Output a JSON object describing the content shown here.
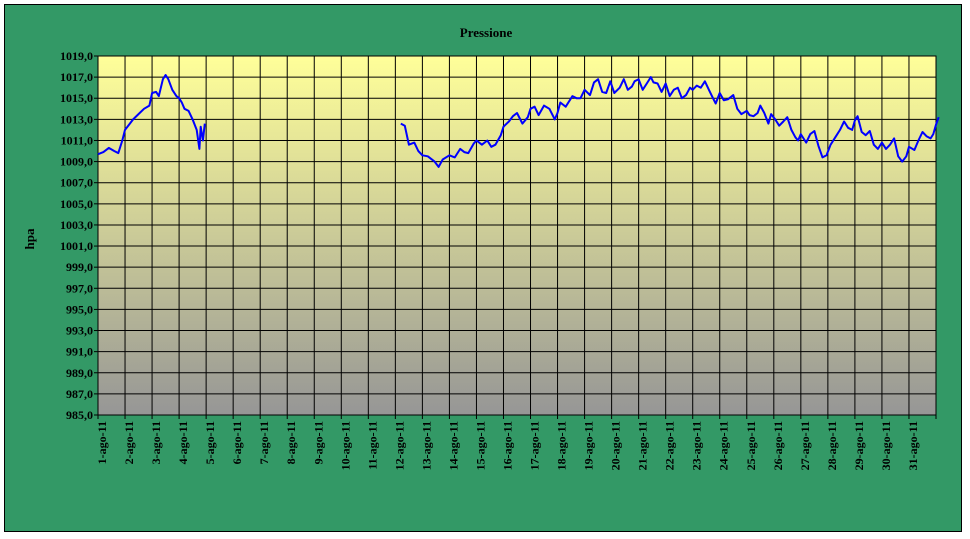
{
  "chart_data": {
    "type": "line",
    "title": "Pressione",
    "xlabel": "",
    "ylabel": "hpa",
    "ylim": [
      985.0,
      1019.0
    ],
    "ytick_step": 2.0,
    "ytick_labels": [
      "1019,0",
      "1017,0",
      "1015,0",
      "1013,0",
      "1011,0",
      "1009,0",
      "1007,0",
      "1005,0",
      "1003,0",
      "1001,0",
      "999,0",
      "997,0",
      "995,0",
      "993,0",
      "991,0",
      "989,0",
      "987,0",
      "985,0"
    ],
    "categories": [
      "1-ago-11",
      "2-ago-11",
      "3-ago-11",
      "4-ago-11",
      "5-ago-11",
      "6-ago-11",
      "7-ago-11",
      "8-ago-11",
      "9-ago-11",
      "10-ago-11",
      "11-ago-11",
      "12-ago-11",
      "13-ago-11",
      "14-ago-11",
      "15-ago-11",
      "16-ago-11",
      "17-ago-11",
      "18-ago-11",
      "19-ago-11",
      "20-ago-11",
      "21-ago-11",
      "22-ago-11",
      "23-ago-11",
      "24-ago-11",
      "25-ago-11",
      "26-ago-11",
      "27-ago-11",
      "28-ago-11",
      "29-ago-11",
      "30-ago-11",
      "31-ago-11"
    ],
    "grid": true,
    "legend": "none",
    "colors": {
      "frame": "#339966",
      "plot_top": "#ffff99",
      "plot_bottom": "#969696",
      "line": "#0000ff",
      "grid": "#000000"
    },
    "series": [
      {
        "segments": [
          [
            [
              1.0,
              1009.7
            ],
            [
              1.2,
              1009.9
            ],
            [
              1.4,
              1010.3
            ],
            [
              1.6,
              1010.0
            ],
            [
              1.75,
              1009.8
            ],
            [
              1.9,
              1011.0
            ],
            [
              2.0,
              1012.0
            ],
            [
              2.15,
              1012.5
            ],
            [
              2.3,
              1013.0
            ],
            [
              2.5,
              1013.5
            ],
            [
              2.7,
              1014.0
            ],
            [
              2.9,
              1014.3
            ],
            [
              3.0,
              1015.5
            ],
            [
              3.15,
              1015.6
            ],
            [
              3.25,
              1015.2
            ],
            [
              3.4,
              1016.8
            ],
            [
              3.5,
              1017.2
            ],
            [
              3.6,
              1016.8
            ],
            [
              3.75,
              1015.8
            ],
            [
              3.9,
              1015.2
            ],
            [
              4.0,
              1015.0
            ],
            [
              4.1,
              1014.6
            ],
            [
              4.2,
              1014.0
            ],
            [
              4.35,
              1013.8
            ],
            [
              4.5,
              1013.0
            ],
            [
              4.65,
              1012.0
            ],
            [
              4.75,
              1010.2
            ],
            [
              4.8,
              1012.3
            ],
            [
              4.88,
              1011.0
            ],
            [
              4.95,
              1012.6
            ]
          ],
          [
            [
              12.2,
              1012.6
            ],
            [
              12.35,
              1012.4
            ],
            [
              12.5,
              1010.6
            ],
            [
              12.7,
              1010.8
            ],
            [
              12.85,
              1010.0
            ],
            [
              13.0,
              1009.6
            ],
            [
              13.2,
              1009.5
            ],
            [
              13.45,
              1009.0
            ],
            [
              13.6,
              1008.5
            ],
            [
              13.75,
              1009.2
            ],
            [
              14.0,
              1009.6
            ],
            [
              14.2,
              1009.4
            ],
            [
              14.4,
              1010.2
            ],
            [
              14.55,
              1009.9
            ],
            [
              14.7,
              1009.8
            ],
            [
              14.9,
              1010.7
            ],
            [
              15.0,
              1011.0
            ],
            [
              15.2,
              1010.6
            ],
            [
              15.4,
              1011.0
            ],
            [
              15.55,
              1010.4
            ],
            [
              15.7,
              1010.6
            ],
            [
              15.9,
              1011.5
            ],
            [
              16.0,
              1012.3
            ],
            [
              16.2,
              1012.8
            ],
            [
              16.35,
              1013.3
            ],
            [
              16.5,
              1013.6
            ],
            [
              16.7,
              1012.6
            ],
            [
              16.9,
              1013.2
            ],
            [
              17.0,
              1014.0
            ],
            [
              17.15,
              1014.2
            ],
            [
              17.3,
              1013.4
            ],
            [
              17.5,
              1014.3
            ],
            [
              17.7,
              1014.0
            ],
            [
              17.9,
              1013.0
            ],
            [
              18.0,
              1013.6
            ],
            [
              18.1,
              1014.6
            ],
            [
              18.3,
              1014.2
            ],
            [
              18.55,
              1015.2
            ],
            [
              18.7,
              1015.0
            ],
            [
              18.85,
              1015.0
            ],
            [
              19.0,
              1015.8
            ],
            [
              19.2,
              1015.3
            ],
            [
              19.35,
              1016.5
            ],
            [
              19.5,
              1016.8
            ],
            [
              19.65,
              1015.6
            ],
            [
              19.8,
              1015.5
            ],
            [
              19.95,
              1016.6
            ],
            [
              20.1,
              1015.5
            ],
            [
              20.3,
              1016.0
            ],
            [
              20.45,
              1016.8
            ],
            [
              20.6,
              1015.8
            ],
            [
              20.75,
              1016.1
            ],
            [
              20.85,
              1016.6
            ],
            [
              21.0,
              1016.8
            ],
            [
              21.15,
              1015.8
            ],
            [
              21.3,
              1016.4
            ],
            [
              21.45,
              1017.0
            ],
            [
              21.55,
              1016.5
            ],
            [
              21.7,
              1016.4
            ],
            [
              21.85,
              1015.6
            ],
            [
              22.0,
              1016.4
            ],
            [
              22.15,
              1015.2
            ],
            [
              22.3,
              1015.8
            ],
            [
              22.45,
              1016.0
            ],
            [
              22.6,
              1015.0
            ],
            [
              22.75,
              1015.3
            ],
            [
              22.9,
              1016.0
            ],
            [
              23.0,
              1015.8
            ],
            [
              23.15,
              1016.2
            ],
            [
              23.3,
              1016.0
            ],
            [
              23.45,
              1016.6
            ],
            [
              23.6,
              1015.8
            ],
            [
              23.75,
              1015.0
            ],
            [
              23.85,
              1014.5
            ],
            [
              24.0,
              1015.5
            ],
            [
              24.15,
              1014.8
            ],
            [
              24.3,
              1014.9
            ],
            [
              24.5,
              1015.3
            ],
            [
              24.65,
              1014.0
            ],
            [
              24.8,
              1013.5
            ],
            [
              25.0,
              1013.8
            ],
            [
              25.1,
              1013.4
            ],
            [
              25.25,
              1013.3
            ],
            [
              25.4,
              1013.6
            ],
            [
              25.5,
              1014.3
            ],
            [
              25.65,
              1013.6
            ],
            [
              25.8,
              1012.6
            ],
            [
              25.9,
              1013.5
            ],
            [
              26.05,
              1013.0
            ],
            [
              26.2,
              1012.4
            ],
            [
              26.35,
              1012.8
            ],
            [
              26.5,
              1013.2
            ],
            [
              26.65,
              1012.0
            ],
            [
              26.8,
              1011.3
            ],
            [
              26.9,
              1011.0
            ],
            [
              27.0,
              1011.6
            ],
            [
              27.2,
              1010.8
            ],
            [
              27.35,
              1011.6
            ],
            [
              27.5,
              1011.9
            ],
            [
              27.65,
              1010.5
            ],
            [
              27.8,
              1009.4
            ],
            [
              27.95,
              1009.6
            ],
            [
              28.1,
              1010.6
            ],
            [
              28.3,
              1011.4
            ],
            [
              28.45,
              1012.0
            ],
            [
              28.6,
              1012.8
            ],
            [
              28.75,
              1012.2
            ],
            [
              28.9,
              1012.0
            ],
            [
              29.0,
              1012.9
            ],
            [
              29.1,
              1013.3
            ],
            [
              29.25,
              1011.8
            ],
            [
              29.4,
              1011.5
            ],
            [
              29.55,
              1011.9
            ],
            [
              29.7,
              1010.6
            ],
            [
              29.85,
              1010.2
            ],
            [
              30.0,
              1010.8
            ],
            [
              30.15,
              1010.2
            ],
            [
              30.3,
              1010.6
            ],
            [
              30.45,
              1011.2
            ],
            [
              30.6,
              1009.5
            ],
            [
              30.75,
              1009.0
            ],
            [
              30.9,
              1009.5
            ],
            [
              31.0,
              1010.4
            ],
            [
              31.2,
              1010.1
            ],
            [
              31.35,
              1011.0
            ],
            [
              31.5,
              1011.8
            ],
            [
              31.65,
              1011.4
            ],
            [
              31.8,
              1011.2
            ],
            [
              31.9,
              1011.6
            ],
            [
              32.0,
              1012.5
            ],
            [
              32.1,
              1013.2
            ]
          ]
        ]
      }
    ]
  }
}
